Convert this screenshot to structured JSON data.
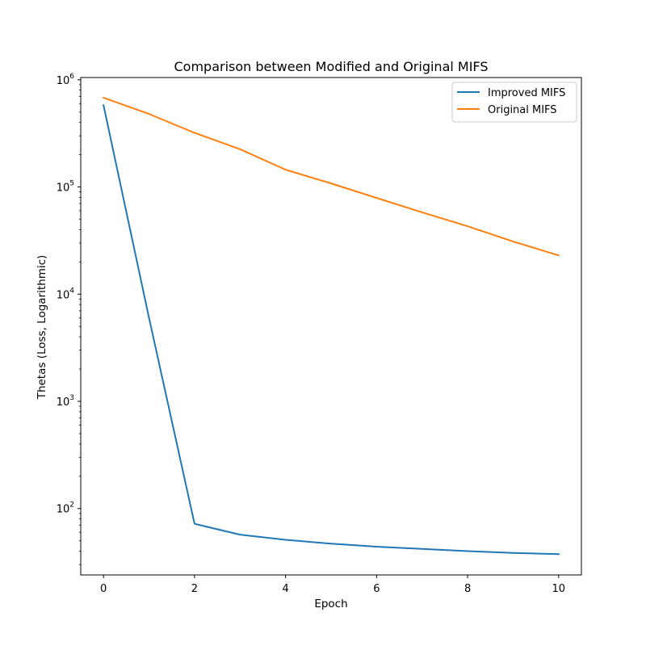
{
  "chart_data": {
    "type": "line",
    "title": "Comparison between Modified and Original MIFS",
    "xlabel": "Epoch",
    "ylabel": "Thetas (Loss, Logarithmic)",
    "y_scale": "log",
    "xlim": [
      -0.5,
      10.5
    ],
    "ylim": [
      24,
      1050000
    ],
    "x_ticks": [
      0,
      2,
      4,
      6,
      8,
      10
    ],
    "y_ticks": [
      {
        "base": "10",
        "exp": "2",
        "value": 100
      },
      {
        "base": "10",
        "exp": "3",
        "value": 1000
      },
      {
        "base": "10",
        "exp": "4",
        "value": 10000
      },
      {
        "base": "10",
        "exp": "5",
        "value": 100000
      },
      {
        "base": "10",
        "exp": "6",
        "value": 1000000
      }
    ],
    "x": [
      0,
      1,
      2,
      3,
      4,
      5,
      6,
      7,
      8,
      9,
      10
    ],
    "series": [
      {
        "name": "Improved MIFS",
        "color": "#1f77b4",
        "values": [
          580000,
          6000,
          72,
          57,
          51,
          47,
          44,
          42,
          40,
          38.5,
          37.5
        ]
      },
      {
        "name": "Original MIFS",
        "color": "#ff7f0e",
        "values": [
          680000,
          480000,
          320000,
          225000,
          145000,
          108000,
          79000,
          58000,
          43000,
          31000,
          23000
        ]
      }
    ],
    "legend": "top-right",
    "grid": false
  }
}
